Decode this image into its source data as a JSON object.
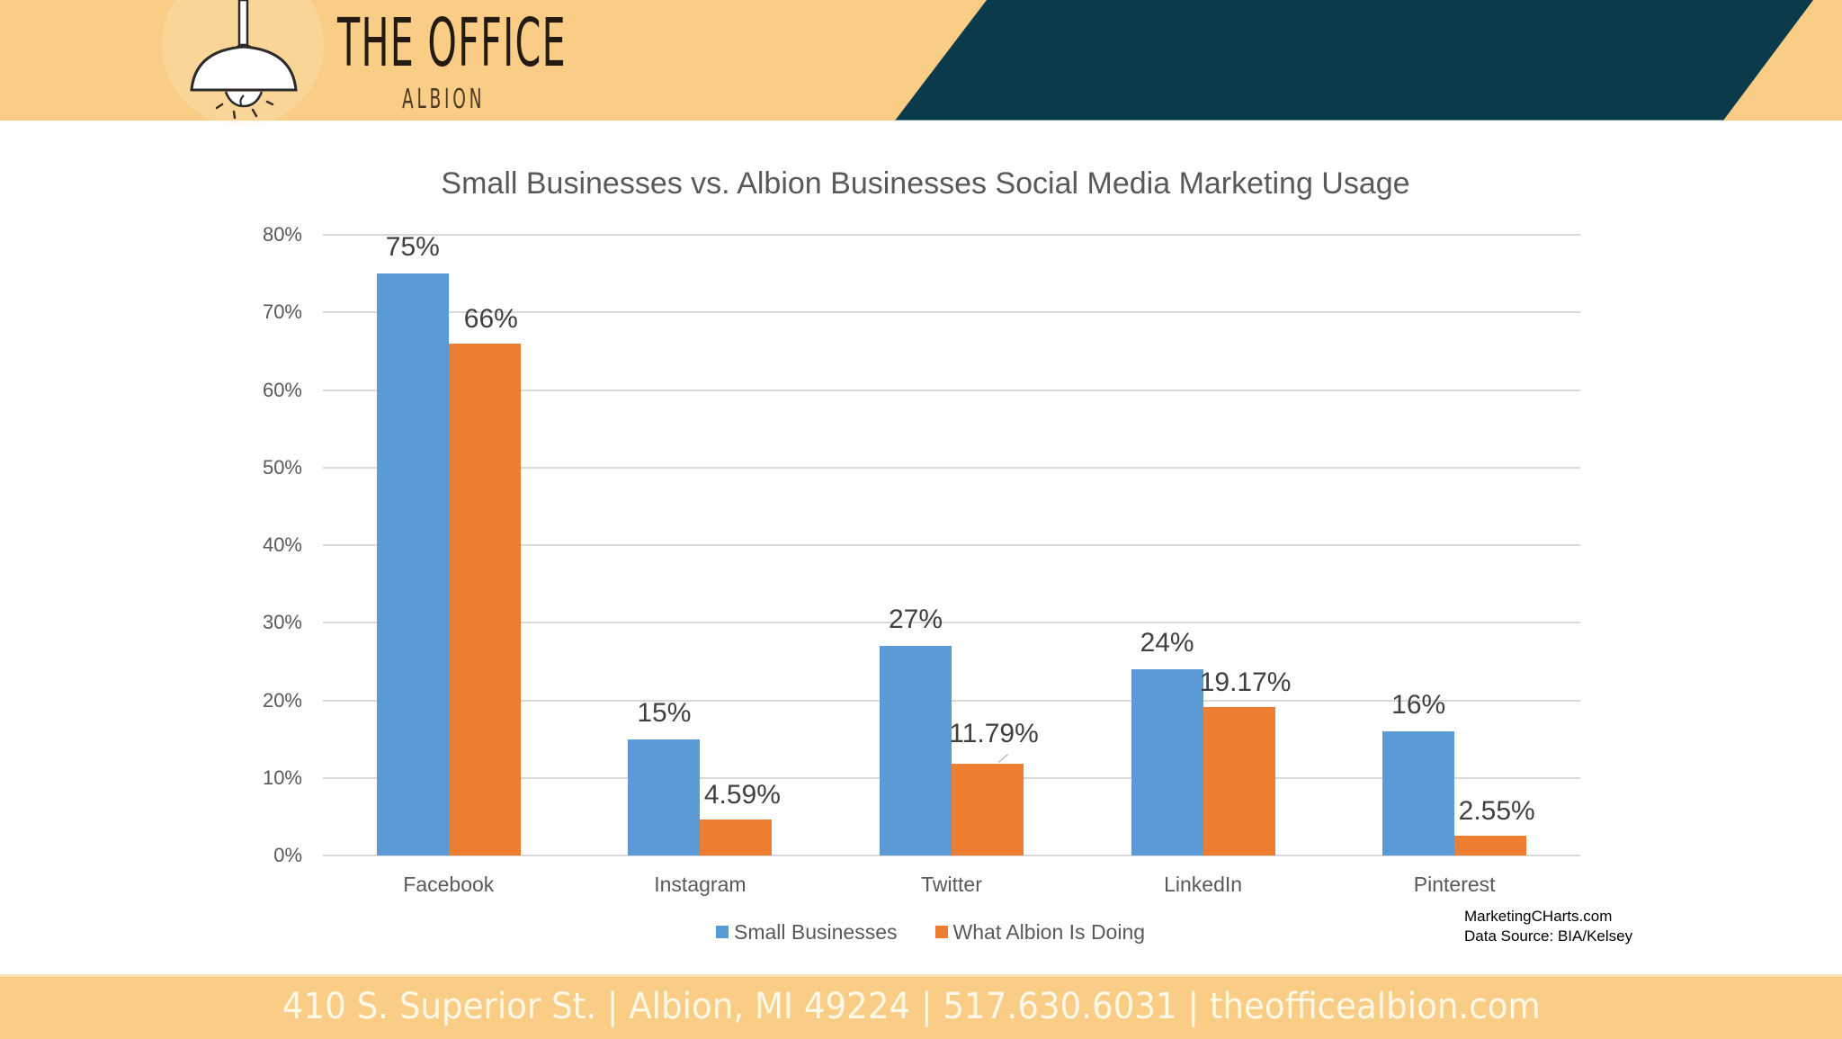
{
  "header": {
    "logo_title": "THE OFFICE",
    "logo_subtitle": "ALBION",
    "colors": {
      "band": "#f9cd85",
      "dark_band": "#0b3a4a"
    }
  },
  "chart_data": {
    "type": "bar",
    "title": "Small Businesses vs. Albion Businesses Social Media Marketing Usage",
    "xlabel": "",
    "ylabel": "",
    "ylim": [
      0,
      80
    ],
    "yticks": [
      "0%",
      "10%",
      "20%",
      "30%",
      "40%",
      "50%",
      "60%",
      "70%",
      "80%"
    ],
    "grid": true,
    "legend_position": "bottom",
    "categories": [
      "Facebook",
      "Instagram",
      "Twitter",
      "LinkedIn",
      "Pinterest"
    ],
    "series": [
      {
        "name": "Small Businesses",
        "color": "#5b9bd5",
        "values": [
          75,
          15,
          27,
          24,
          16
        ],
        "labels": [
          "75%",
          "15%",
          "27%",
          "24%",
          "16%"
        ]
      },
      {
        "name": "What Albion Is Doing",
        "color": "#ed7d31",
        "values": [
          66,
          4.59,
          11.79,
          19.17,
          2.55
        ],
        "labels": [
          "66%",
          "4.59%",
          "11.79%",
          "19.17%",
          "2.55%"
        ]
      }
    ]
  },
  "legend": {
    "items": [
      {
        "label": "Small Businesses",
        "color": "#5b9bd5"
      },
      {
        "label": "What Albion Is Doing",
        "color": "#ed7d31"
      }
    ]
  },
  "source_note": {
    "line1": "MarketingCHarts.com",
    "line2": "Data Source:  BIA/Kelsey"
  },
  "footer": {
    "text": "410 S. Superior St. | Albion, MI 49224 | 517.630.6031 | theofficealbion.com"
  }
}
